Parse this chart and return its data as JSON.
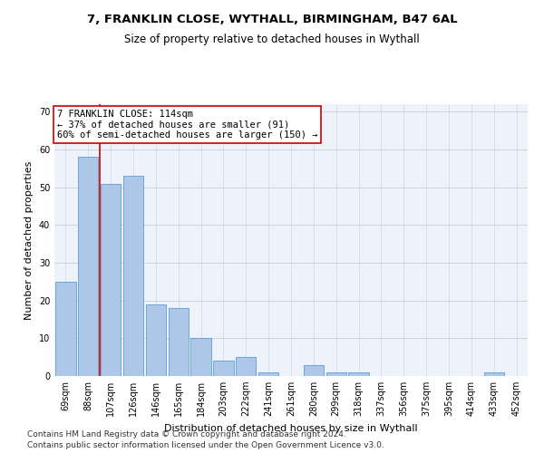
{
  "title_line1": "7, FRANKLIN CLOSE, WYTHALL, BIRMINGHAM, B47 6AL",
  "title_line2": "Size of property relative to detached houses in Wythall",
  "xlabel": "Distribution of detached houses by size in Wythall",
  "ylabel": "Number of detached properties",
  "categories": [
    "69sqm",
    "88sqm",
    "107sqm",
    "126sqm",
    "146sqm",
    "165sqm",
    "184sqm",
    "203sqm",
    "222sqm",
    "241sqm",
    "261sqm",
    "280sqm",
    "299sqm",
    "318sqm",
    "337sqm",
    "356sqm",
    "375sqm",
    "395sqm",
    "414sqm",
    "433sqm",
    "452sqm"
  ],
  "values": [
    25,
    58,
    51,
    53,
    19,
    18,
    10,
    4,
    5,
    1,
    0,
    3,
    1,
    1,
    0,
    0,
    0,
    0,
    0,
    1,
    0
  ],
  "bar_color": "#aec6e8",
  "bar_edge_color": "#5a9fd4",
  "annotation_text": "7 FRANKLIN CLOSE: 114sqm\n← 37% of detached houses are smaller (91)\n60% of semi-detached houses are larger (150) →",
  "annotation_box_color": "#ffffff",
  "annotation_box_edge": "#cc0000",
  "annotation_text_color": "#000000",
  "red_line_color": "#cc0000",
  "red_line_x": 1.5,
  "ylim": [
    0,
    72
  ],
  "yticks": [
    0,
    10,
    20,
    30,
    40,
    50,
    60,
    70
  ],
  "bg_color": "#eef2fb",
  "footer_line1": "Contains HM Land Registry data © Crown copyright and database right 2024.",
  "footer_line2": "Contains public sector information licensed under the Open Government Licence v3.0.",
  "grid_color": "#c8cfe0",
  "title_fontsize": 9.5,
  "subtitle_fontsize": 8.5,
  "axis_label_fontsize": 8,
  "tick_fontsize": 7,
  "annotation_fontsize": 7.5,
  "footer_fontsize": 6.5
}
